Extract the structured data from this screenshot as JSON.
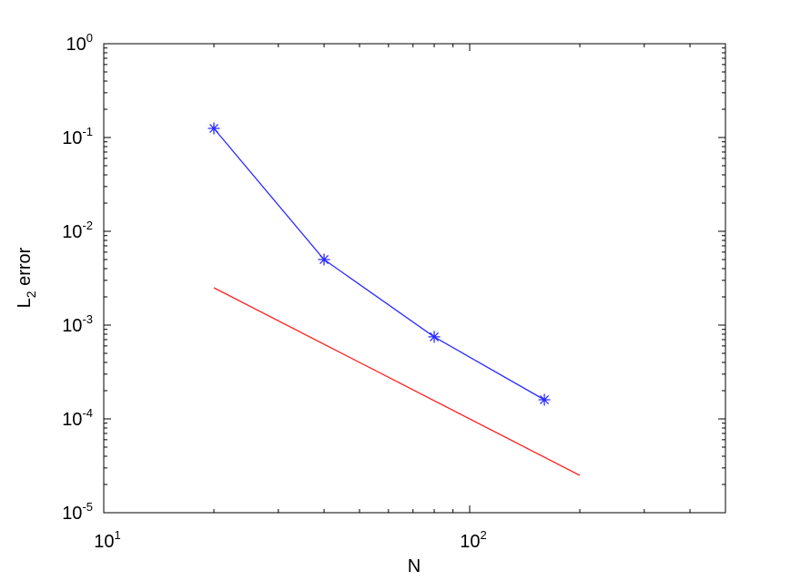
{
  "chart_data": {
    "type": "line",
    "xscale": "log",
    "yscale": "log",
    "xlim": [
      10,
      500
    ],
    "ylim": [
      1e-05,
      1
    ],
    "xlabel": "N",
    "ylabel": {
      "base": "L",
      "sub": "2",
      "rest": " error"
    },
    "grid": false,
    "x_ticks": [
      {
        "value": 10,
        "base": "10",
        "exp": "1"
      },
      {
        "value": 100,
        "base": "10",
        "exp": "2"
      }
    ],
    "y_ticks": [
      {
        "value": 1,
        "base": "10",
        "exp": "0"
      },
      {
        "value": 0.1,
        "base": "10",
        "exp": "-1"
      },
      {
        "value": 0.01,
        "base": "10",
        "exp": "-2"
      },
      {
        "value": 0.001,
        "base": "10",
        "exp": "-3"
      },
      {
        "value": 0.0001,
        "base": "10",
        "exp": "-4"
      },
      {
        "value": 1e-05,
        "base": "10",
        "exp": "-5"
      }
    ],
    "series": [
      {
        "color": "#2b2bff",
        "marker": "asterisk",
        "x": [
          20,
          40,
          80,
          160
        ],
        "y": [
          0.125,
          0.005,
          0.00075,
          0.00016
        ]
      },
      {
        "color": "#ff1f1f",
        "marker": "none",
        "x": [
          20,
          200
        ],
        "y": [
          0.0025,
          2.5e-05
        ]
      }
    ]
  }
}
